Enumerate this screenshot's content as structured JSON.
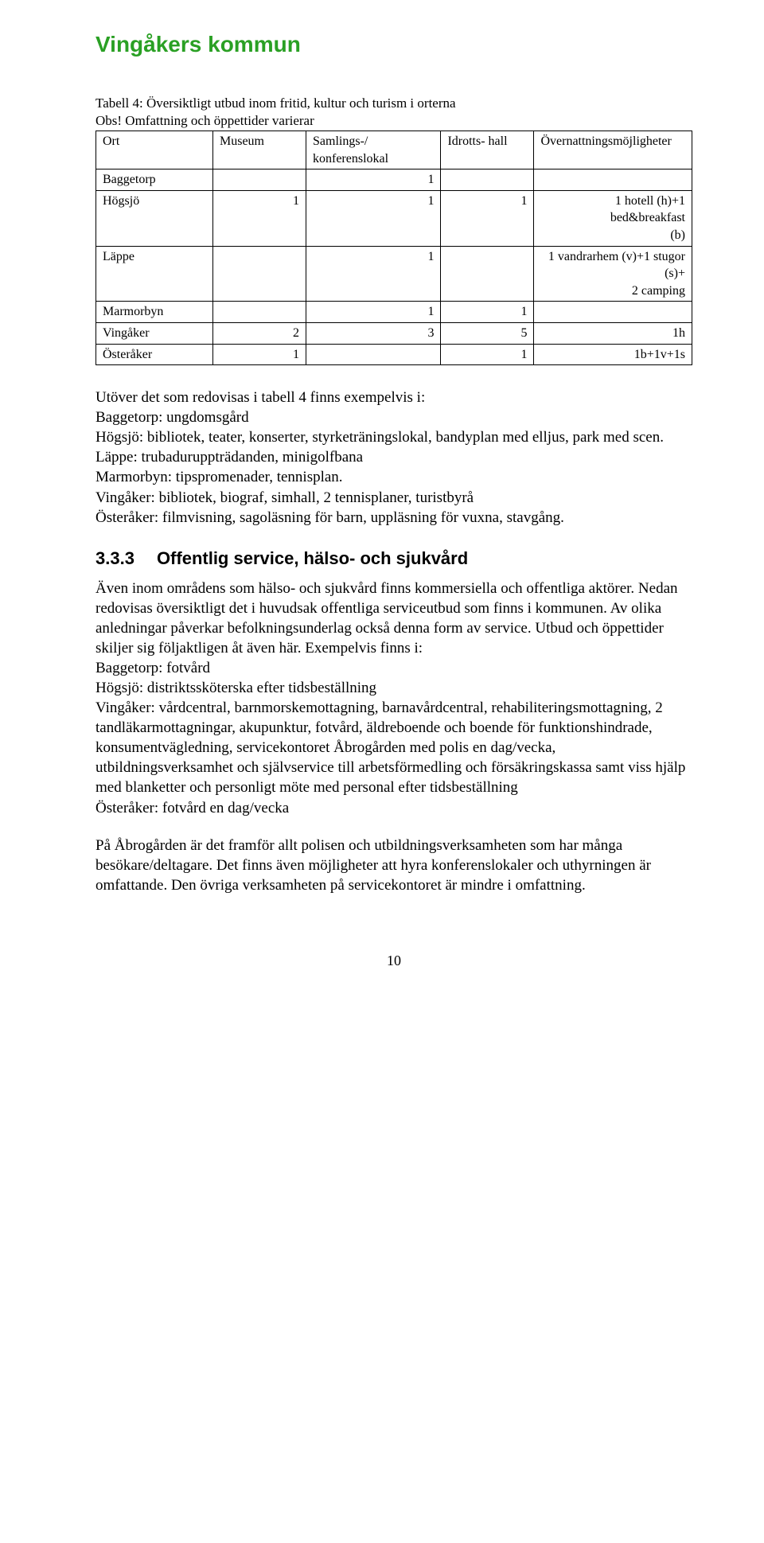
{
  "header": {
    "title": "Vingåkers kommun",
    "color": "#2aa024"
  },
  "table": {
    "caption_line1": "Tabell 4: Översiktligt utbud inom fritid, kultur och turism i orterna",
    "caption_line2": "Obs! Omfattning och öppettider varierar",
    "columns": [
      "Ort",
      "Museum",
      "Samlings-/\nkonferenslokal",
      "Idrotts-\nhall",
      "Övernattningsmöjligheter"
    ],
    "rows": [
      [
        "Baggetorp",
        "",
        "1",
        "",
        ""
      ],
      [
        "Högsjö",
        "1",
        "1",
        "1",
        "1 hotell (h)+1 bed&breakfast\n(b)"
      ],
      [
        "Läppe",
        "",
        "1",
        "",
        "1 vandrarhem (v)+1 stugor\n(s)+\n2 camping"
      ],
      [
        "Marmorbyn",
        "",
        "1",
        "1",
        ""
      ],
      [
        "Vingåker",
        "2",
        "3",
        "5",
        "1h"
      ],
      [
        "Österåker",
        "1",
        "",
        "1",
        "1b+1v+1s"
      ]
    ],
    "col5_align_right_rows": [
      4,
      5
    ]
  },
  "para1": {
    "intro": "Utöver det som redovisas i tabell 4 finns exempelvis i:",
    "lines": [
      "Baggetorp: ungdomsgård",
      "Högsjö: bibliotek, teater, konserter, styrketräningslokal, bandyplan med elljus, park med scen.",
      "Läppe: trubaduruppträdanden, minigolfbana",
      "Marmorbyn: tipspromenader, tennisplan.",
      "Vingåker: bibliotek, biograf, simhall, 2 tennisplaner, turistbyrå",
      "Österåker: filmvisning, sagoläsning för barn, uppläsning för vuxna, stavgång."
    ]
  },
  "section": {
    "number": "3.3.3",
    "title": "Offentlig service, hälso- och sjukvård"
  },
  "para2": "Även inom områdens som hälso- och sjukvård finns kommersiella och offentliga aktörer. Nedan redovisas översiktligt det i huvudsak offentliga serviceutbud som finns i kommunen. Av olika anledningar påverkar befolkningsunderlag också denna form av service. Utbud och öppettider skiljer sig följaktligen åt även här. Exempelvis finns i:",
  "para2_lines": [
    "Baggetorp: fotvård",
    "Högsjö: distriktssköterska efter tidsbeställning",
    "Vingåker: vårdcentral, barnmorskemottagning, barnavårdcentral, rehabiliteringsmottagning, 2 tandläkarmottagningar, akupunktur, fotvård, äldreboende och boende för funktionshindrade, konsumentvägledning, servicekontoret Åbrogården med polis en dag/vecka, utbildningsverksamhet och självservice till arbetsförmedling och försäkringskassa samt viss hjälp med blanketter och personligt möte med personal efter tidsbeställning",
    "Österåker: fotvård en dag/vecka"
  ],
  "para3": "På Åbrogården är det framför allt polisen och utbildningsverksamheten som har många besökare/deltagare. Det finns även möjligheter att hyra konferenslokaler och uthyrningen är omfattande. Den övriga verksamheten på servicekontoret är mindre i omfattning.",
  "page_number": "10"
}
